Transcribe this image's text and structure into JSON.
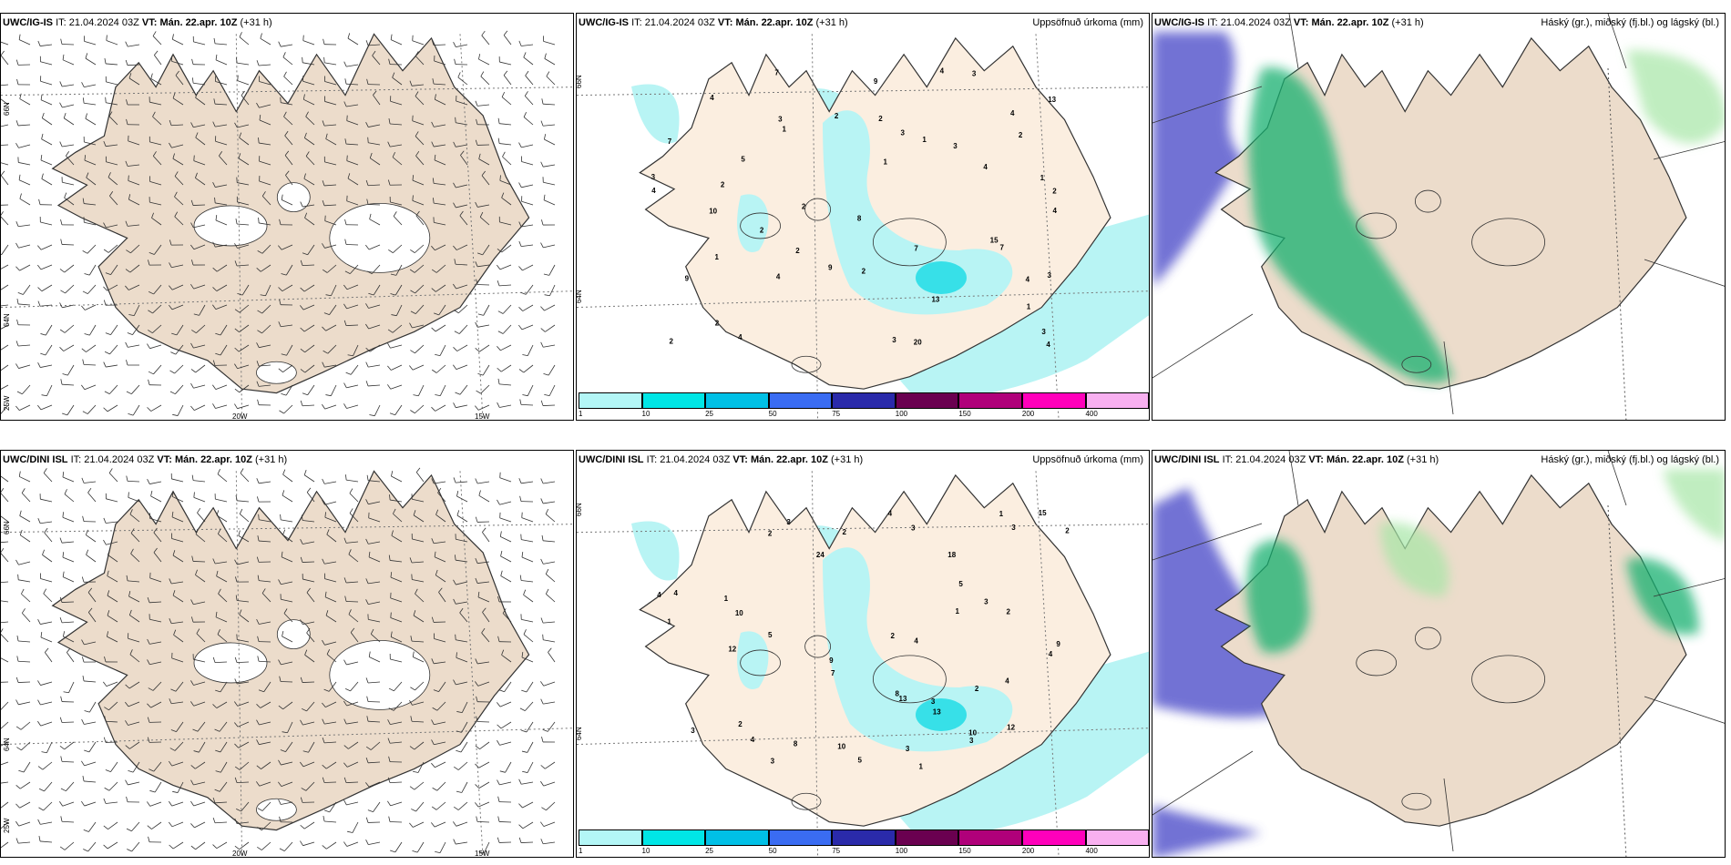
{
  "rows": [
    {
      "model": "UWC/IG-IS",
      "it_label": "IT:",
      "it_value": "21.04.2024 03Z",
      "vt_label": "VT:",
      "vt_value": "Mán. 22.apr. 10Z",
      "lead": "(+31 h)"
    },
    {
      "model": "UWC/DINI ISL",
      "it_label": "IT:",
      "it_value": "21.04.2024 03Z",
      "vt_label": "VT:",
      "vt_value": "Mán. 22.apr. 10Z",
      "lead": "(+31 h)"
    }
  ],
  "precip_title": "Uppsöfnuð úrkoma (mm)",
  "cloud_title": "Háský (gr.), miðský (fj.bl.) og lágský (bl.)",
  "lat_labels": [
    "66N",
    "64N",
    "25W"
  ],
  "lon_labels": [
    "20W",
    "15W"
  ],
  "mid_lat_labels": [
    "66N",
    "64N"
  ],
  "colorbar": {
    "labels": [
      "1",
      "10",
      "25",
      "50",
      "75",
      "100",
      "150",
      "200",
      "400"
    ],
    "colors": [
      "#b3f6f6",
      "#00e6e6",
      "#00c0e6",
      "#3a6cf2",
      "#2a2aaa",
      "#6a0050",
      "#b0007a",
      "#ff00bb",
      "#f8b0f0"
    ]
  },
  "colors": {
    "land": "#ecdccb",
    "land_precip": "#fbeee0",
    "precip_light": "#b8f4f4",
    "precip_mid": "#37e0e8",
    "high_cloud": "#5a5acd",
    "mid_cloud": "#18b070",
    "low_cloud": "#a6e6a6"
  },
  "precip_values_top": [
    "1",
    "1",
    "1",
    "2",
    "2",
    "3",
    "2",
    "4",
    "4",
    "4",
    "5",
    "7",
    "4",
    "4",
    "9",
    "8",
    "2",
    "3",
    "7",
    "2",
    "3",
    "2",
    "2",
    "1",
    "1",
    "3",
    "2",
    "13",
    "3",
    "13",
    "4",
    "4",
    "10",
    "9",
    "2",
    "4",
    "4",
    "7",
    "2",
    "15",
    "20",
    "7",
    "9",
    "2",
    "1",
    "4",
    "3",
    "3",
    "3"
  ],
  "precip_values_bottom": [
    "1",
    "2",
    "2",
    "1",
    "3",
    "3",
    "4",
    "5",
    "7",
    "4",
    "3",
    "4",
    "9",
    "8",
    "1",
    "1",
    "1",
    "3",
    "2",
    "2",
    "10",
    "13",
    "3",
    "3",
    "4",
    "5",
    "12",
    "10",
    "5",
    "24",
    "13",
    "15",
    "18",
    "8",
    "3",
    "10",
    "4",
    "4",
    "9",
    "3",
    "2",
    "2",
    "2",
    "12",
    "3",
    "4"
  ]
}
